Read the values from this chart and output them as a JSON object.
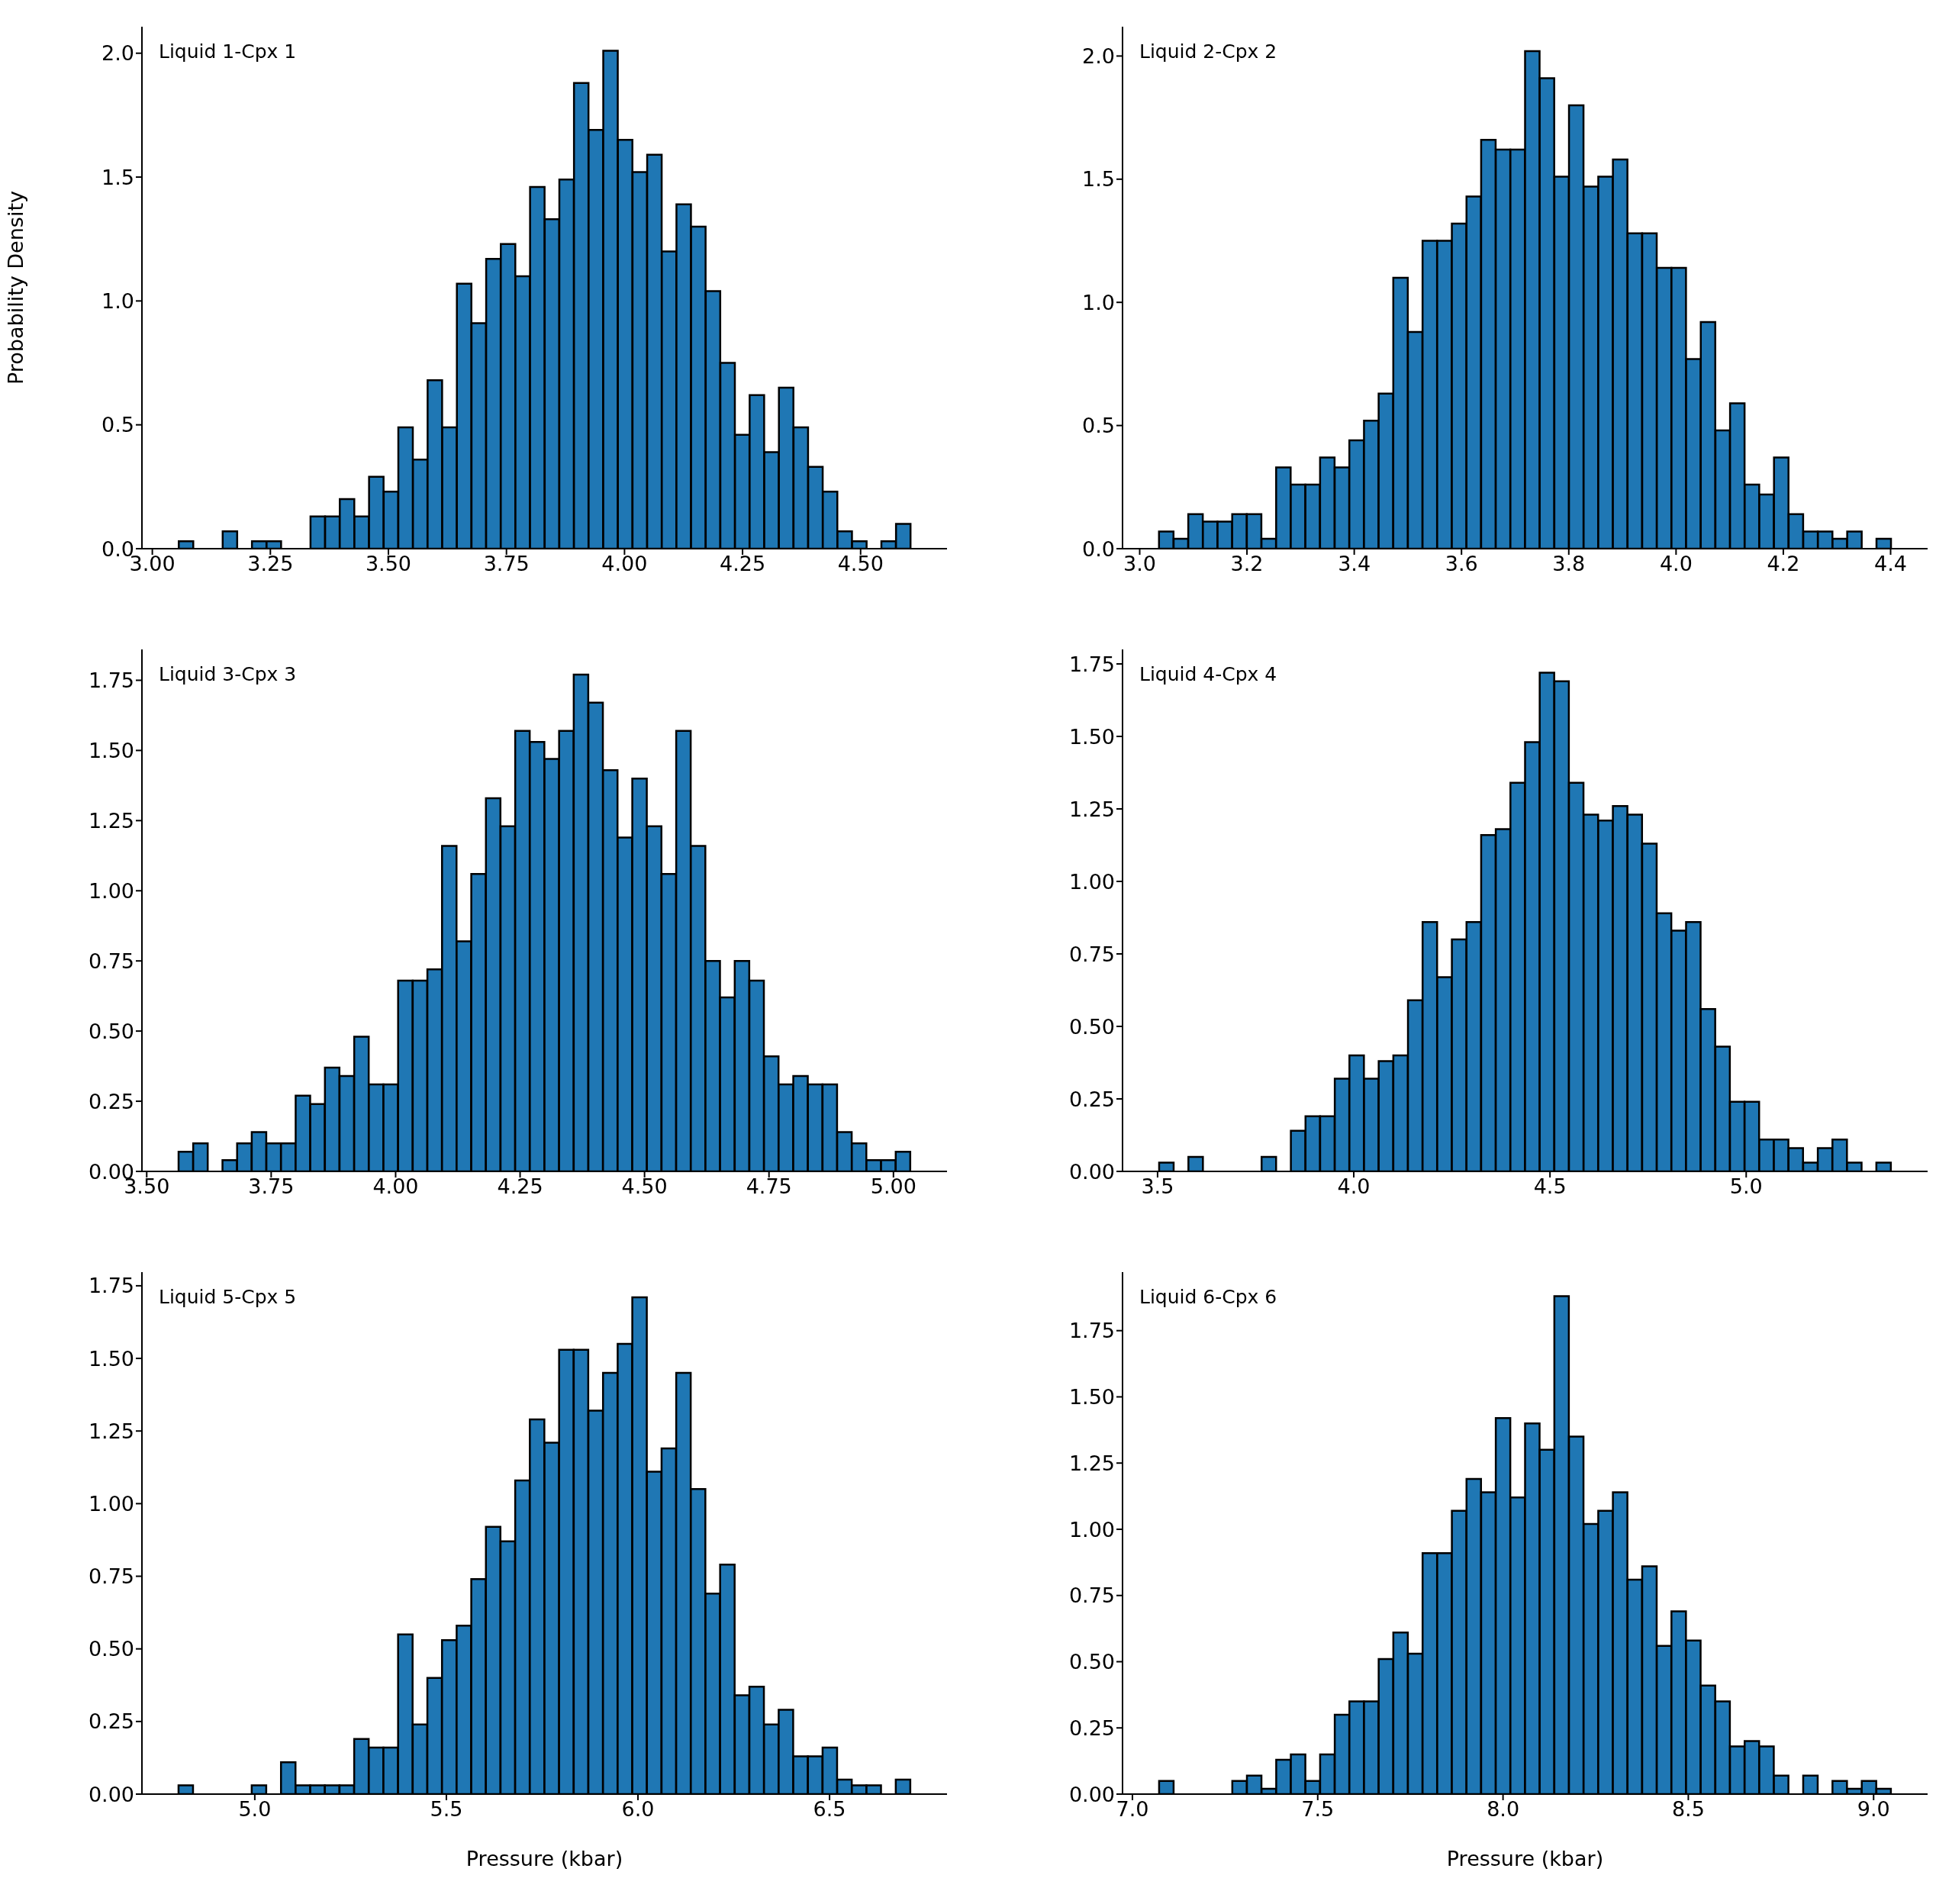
{
  "chart_data": [
    {
      "type": "histogram",
      "annotations": [
        "Liquid 1-Cpx 1"
      ],
      "ylabel": "Probability Density",
      "color": "#1f77b4",
      "bins": [
        3.056,
        3.087,
        3.118,
        3.149,
        3.18,
        3.211,
        3.242,
        3.273,
        3.304,
        3.335,
        3.366,
        3.397,
        3.428,
        3.459,
        3.49,
        3.521,
        3.552,
        3.583,
        3.614,
        3.645,
        3.676,
        3.707,
        3.738,
        3.769,
        3.8,
        3.831,
        3.862,
        3.893,
        3.924,
        3.955,
        3.986,
        4.017,
        4.048,
        4.079,
        4.11,
        4.141,
        4.172,
        4.203,
        4.234,
        4.265,
        4.296,
        4.327,
        4.358,
        4.389,
        4.42,
        4.451,
        4.482,
        4.513,
        4.544,
        4.575,
        4.606
      ],
      "values": [
        0.03,
        0,
        0,
        0.07,
        0,
        0.03,
        0.03,
        0,
        0,
        0.13,
        0.13,
        0.2,
        0.13,
        0.29,
        0.23,
        0.49,
        0.36,
        0.68,
        0.49,
        1.07,
        0.91,
        1.17,
        1.23,
        1.1,
        1.46,
        1.33,
        1.49,
        1.88,
        1.69,
        2.01,
        1.65,
        1.52,
        1.59,
        1.2,
        1.39,
        1.3,
        1.04,
        0.75,
        0.46,
        0.62,
        0.39,
        0.65,
        0.49,
        0.33,
        0.23,
        0.07,
        0.03,
        0,
        0.03,
        0.1
      ],
      "xlim": [
        2.978,
        4.683
      ],
      "xticks": [
        {
          "value": 3,
          "label": "3.00"
        },
        {
          "value": 3.25,
          "label": "3.25"
        },
        {
          "value": 3.5,
          "label": "3.50"
        },
        {
          "value": 3.75,
          "label": "3.75"
        },
        {
          "value": 4,
          "label": "4.00"
        },
        {
          "value": 4.25,
          "label": "4.25"
        },
        {
          "value": 4.5,
          "label": "4.50"
        }
      ],
      "ylim": [
        0,
        2.107
      ],
      "yticks": [
        {
          "value": 0,
          "label": "0.0"
        },
        {
          "value": 0.5,
          "label": "0.5"
        },
        {
          "value": 1,
          "label": "1.0"
        },
        {
          "value": 1.5,
          "label": "1.5"
        },
        {
          "value": 2,
          "label": "2.0"
        }
      ]
    },
    {
      "type": "histogram",
      "annotations": [
        "Liquid 2-Cpx 2"
      ],
      "color": "#1f77b4",
      "bins": [
        3.036,
        3.0633,
        3.0906,
        3.1179,
        3.1452,
        3.1725,
        3.1998,
        3.2271,
        3.2544,
        3.2817,
        3.309,
        3.3363,
        3.3636,
        3.3909,
        3.4182,
        3.4455,
        3.4728,
        3.5001,
        3.5274,
        3.5547,
        3.582,
        3.6093,
        3.6366,
        3.6639,
        3.6912,
        3.7185,
        3.7458,
        3.7731,
        3.8004,
        3.8277,
        3.855,
        3.8823,
        3.9096,
        3.9369,
        3.9642,
        3.9915,
        4.0188,
        4.0461,
        4.0734,
        4.1007,
        4.128,
        4.1553,
        4.1826,
        4.2099,
        4.2372,
        4.2645,
        4.2918,
        4.3191,
        4.3464,
        4.3737,
        4.401
      ],
      "values": [
        0.07,
        0.04,
        0.14,
        0.11,
        0.11,
        0.14,
        0.14,
        0.04,
        0.33,
        0.26,
        0.26,
        0.37,
        0.33,
        0.44,
        0.52,
        0.63,
        1.1,
        0.88,
        1.25,
        1.25,
        1.32,
        1.43,
        1.66,
        1.62,
        1.62,
        2.02,
        1.91,
        1.51,
        1.8,
        1.47,
        1.51,
        1.58,
        1.28,
        1.28,
        1.14,
        1.14,
        0.77,
        0.92,
        0.48,
        0.59,
        0.26,
        0.22,
        0.37,
        0.14,
        0.07,
        0.07,
        0.04,
        0.07,
        0,
        0.04
      ],
      "xlim": [
        2.968,
        4.469
      ],
      "xticks": [
        {
          "value": 3,
          "label": "3.0"
        },
        3.2,
        3.4,
        3.6,
        3.8,
        {
          "value": 4,
          "label": "4.0"
        },
        4.2,
        4.4
      ],
      "ylim": [
        0,
        2.119
      ],
      "yticks": [
        {
          "value": 0,
          "label": "0.0"
        },
        {
          "value": 0.5,
          "label": "0.5"
        },
        {
          "value": 1,
          "label": "1.0"
        },
        {
          "value": 1.5,
          "label": "1.5"
        },
        {
          "value": 2,
          "label": "2.0"
        }
      ]
    },
    {
      "type": "histogram",
      "annotations": [
        "Liquid 3-Cpx 3"
      ],
      "color": "#1f77b4",
      "bins": [
        3.564,
        3.5934,
        3.6228,
        3.6522,
        3.6816,
        3.711,
        3.7404,
        3.7698,
        3.7992,
        3.8286,
        3.858,
        3.8874,
        3.9168,
        3.9462,
        3.9756,
        4.005,
        4.0344,
        4.0638,
        4.0932,
        4.1226,
        4.152,
        4.1814,
        4.2108,
        4.2402,
        4.2696,
        4.299,
        4.3284,
        4.3578,
        4.3872,
        4.4166,
        4.446,
        4.4754,
        4.5048,
        4.5342,
        4.5636,
        4.593,
        4.6224,
        4.6518,
        4.6812,
        4.7106,
        4.74,
        4.7694,
        4.7988,
        4.8282,
        4.8576,
        4.887,
        4.9164,
        4.9458,
        4.9752,
        5.0046,
        5.034
      ],
      "values": [
        0.07,
        0.1,
        0,
        0.04,
        0.1,
        0.14,
        0.1,
        0.1,
        0.27,
        0.24,
        0.37,
        0.34,
        0.48,
        0.31,
        0.31,
        0.68,
        0.68,
        0.72,
        1.16,
        0.82,
        1.06,
        1.33,
        1.23,
        1.57,
        1.53,
        1.47,
        1.57,
        1.77,
        1.67,
        1.43,
        1.19,
        1.4,
        1.23,
        1.06,
        1.57,
        1.16,
        0.75,
        0.62,
        0.75,
        0.68,
        0.41,
        0.31,
        0.34,
        0.31,
        0.31,
        0.14,
        0.1,
        0.04,
        0.04,
        0.07
      ],
      "xlim": [
        3.4904,
        5.1076
      ],
      "xticks": [
        {
          "value": 3.5,
          "label": "3.50"
        },
        3.75,
        {
          "value": 4,
          "label": "4.00"
        },
        4.25,
        {
          "value": 4.5,
          "label": "4.50"
        },
        4.75,
        {
          "value": 5,
          "label": "5.00"
        }
      ],
      "ylim": [
        0,
        1.86
      ],
      "yticks": [
        {
          "value": 0,
          "label": "0.00"
        },
        0.25,
        {
          "value": 0.5,
          "label": "0.50"
        },
        0.75,
        {
          "value": 1,
          "label": "1.00"
        },
        1.25,
        {
          "value": 1.5,
          "label": "1.50"
        },
        1.75
      ]
    },
    {
      "type": "histogram",
      "annotations": [
        "Liquid 4-Cpx 4"
      ],
      "color": "#1f77b4",
      "bins": [
        3.504,
        3.5413,
        3.5786,
        3.6159,
        3.6532,
        3.6905,
        3.7278,
        3.7651,
        3.8024,
        3.8397,
        3.877,
        3.9143,
        3.9516,
        3.9889,
        4.0262,
        4.0635,
        4.1008,
        4.1381,
        4.1754,
        4.2127,
        4.25,
        4.2873,
        4.3246,
        4.3619,
        4.3992,
        4.4365,
        4.4738,
        4.5111,
        4.5484,
        4.5857,
        4.623,
        4.6603,
        4.6976,
        4.7349,
        4.7722,
        4.8095,
        4.8468,
        4.8841,
        4.9214,
        4.9587,
        4.996,
        5.0333,
        5.0706,
        5.1079,
        5.1452,
        5.1825,
        5.2198,
        5.2571,
        5.2944,
        5.3317,
        5.369
      ],
      "values": [
        0.03,
        0,
        0.05,
        0,
        0,
        0,
        0,
        0.05,
        0,
        0.14,
        0.19,
        0.19,
        0.32,
        0.4,
        0.32,
        0.38,
        0.4,
        0.59,
        0.86,
        0.67,
        0.8,
        0.86,
        1.16,
        1.18,
        1.34,
        1.48,
        1.72,
        1.69,
        1.34,
        1.23,
        1.21,
        1.26,
        1.23,
        1.13,
        0.89,
        0.83,
        0.86,
        0.56,
        0.43,
        0.24,
        0.24,
        0.11,
        0.11,
        0.08,
        0.03,
        0.08,
        0.11,
        0.03,
        0,
        0.03
      ],
      "xlim": [
        3.4107,
        5.4623
      ],
      "xticks": [
        3.5,
        {
          "value": 4,
          "label": "4.0"
        },
        4.5,
        {
          "value": 5,
          "label": "5.0"
        }
      ],
      "ylim": [
        0,
        1.8
      ],
      "yticks": [
        {
          "value": 0,
          "label": "0.00"
        },
        0.25,
        {
          "value": 0.5,
          "label": "0.50"
        },
        0.75,
        {
          "value": 1,
          "label": "1.00"
        },
        1.25,
        {
          "value": 1.5,
          "label": "1.50"
        },
        1.75
      ]
    },
    {
      "type": "histogram",
      "annotations": [
        "Liquid 5-Cpx 5"
      ],
      "xlabel": "Pressure (kbar)",
      "color": "#1f77b4",
      "bins": [
        4.801,
        4.8392,
        4.8774,
        4.9156,
        4.9538,
        4.992,
        5.0302,
        5.0684,
        5.1066,
        5.1448,
        5.183,
        5.2212,
        5.2594,
        5.2976,
        5.3358,
        5.374,
        5.4122,
        5.4504,
        5.4886,
        5.5268,
        5.565,
        5.6032,
        5.6414,
        5.6796,
        5.7178,
        5.756,
        5.7942,
        5.8324,
        5.8706,
        5.9088,
        5.947,
        5.9852,
        6.0234,
        6.0616,
        6.0998,
        6.138,
        6.1762,
        6.2144,
        6.2526,
        6.2908,
        6.329,
        6.3672,
        6.4054,
        6.4436,
        6.4818,
        6.52,
        6.5582,
        6.5964,
        6.6346,
        6.6728,
        6.711
      ],
      "values": [
        0.03,
        0,
        0,
        0,
        0,
        0.03,
        0,
        0.11,
        0.03,
        0.03,
        0.03,
        0.03,
        0.19,
        0.16,
        0.16,
        0.55,
        0.24,
        0.4,
        0.53,
        0.58,
        0.74,
        0.92,
        0.87,
        1.08,
        1.29,
        1.21,
        1.53,
        1.53,
        1.32,
        1.45,
        1.55,
        1.71,
        1.11,
        1.19,
        1.45,
        1.05,
        0.69,
        0.79,
        0.34,
        0.37,
        0.24,
        0.29,
        0.13,
        0.13,
        0.16,
        0.05,
        0.03,
        0.03,
        0,
        0.05
      ],
      "xlim": [
        4.7055,
        6.8065
      ],
      "xticks": [
        {
          "value": 5,
          "label": "5.0"
        },
        5.5,
        {
          "value": 6,
          "label": "6.0"
        },
        6.5
      ],
      "ylim": [
        0,
        1.797
      ],
      "yticks": [
        {
          "value": 0,
          "label": "0.00"
        },
        0.25,
        {
          "value": 0.5,
          "label": "0.50"
        },
        0.75,
        {
          "value": 1,
          "label": "1.00"
        },
        1.25,
        {
          "value": 1.5,
          "label": "1.50"
        },
        1.75
      ]
    },
    {
      "type": "histogram",
      "annotations": [
        "Liquid 6-Cpx 6"
      ],
      "xlabel": "Pressure (kbar)",
      "color": "#1f77b4",
      "bins": [
        7.072,
        7.1115,
        7.151,
        7.1905,
        7.23,
        7.2695,
        7.309,
        7.3485,
        7.388,
        7.4275,
        7.467,
        7.5065,
        7.546,
        7.5855,
        7.625,
        7.6645,
        7.704,
        7.7435,
        7.783,
        7.8225,
        7.862,
        7.9015,
        7.941,
        7.9805,
        8.02,
        8.0595,
        8.099,
        8.1385,
        8.178,
        8.2175,
        8.257,
        8.2965,
        8.336,
        8.3755,
        8.415,
        8.4545,
        8.494,
        8.5335,
        8.573,
        8.6125,
        8.652,
        8.6915,
        8.731,
        8.7705,
        8.81,
        8.8495,
        8.889,
        8.9285,
        8.968,
        9.0075,
        9.047
      ],
      "values": [
        0.05,
        0,
        0,
        0,
        0,
        0.05,
        0.07,
        0.02,
        0.13,
        0.15,
        0.05,
        0.15,
        0.3,
        0.35,
        0.35,
        0.51,
        0.61,
        0.53,
        0.91,
        0.91,
        1.07,
        1.19,
        1.14,
        1.42,
        1.12,
        1.4,
        1.3,
        1.88,
        1.35,
        1.02,
        1.07,
        1.14,
        0.81,
        0.86,
        0.56,
        0.69,
        0.58,
        0.41,
        0.35,
        0.18,
        0.2,
        0.18,
        0.07,
        0,
        0.07,
        0,
        0.05,
        0.02,
        0.05,
        0.02
      ],
      "xlim": [
        6.9733,
        9.1457
      ],
      "xticks": [
        {
          "value": 7,
          "label": "7.0"
        },
        7.5,
        {
          "value": 8,
          "label": "8.0"
        },
        8.5,
        {
          "value": 9,
          "label": "9.0"
        }
      ],
      "ylim": [
        0,
        1.971
      ],
      "yticks": [
        {
          "value": 0,
          "label": "0.00"
        },
        0.25,
        {
          "value": 0.5,
          "label": "0.50"
        },
        0.75,
        {
          "value": 1,
          "label": "1.00"
        },
        1.25,
        {
          "value": 1.5,
          "label": "1.50"
        },
        1.75
      ]
    }
  ]
}
